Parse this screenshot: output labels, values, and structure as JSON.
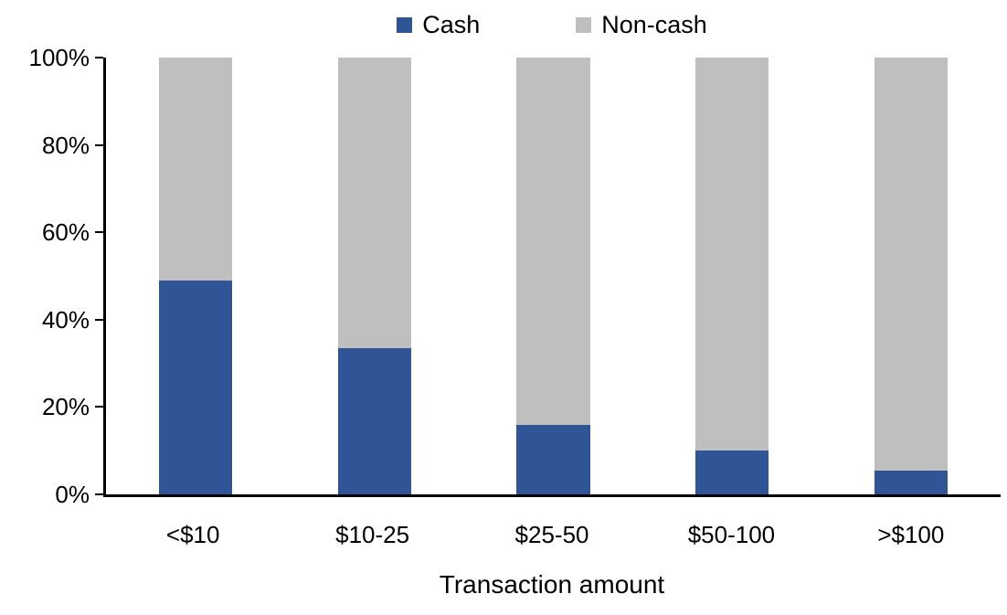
{
  "chart_data": {
    "type": "bar",
    "subtype": "stacked-100",
    "categories": [
      "<$10",
      "$10-25",
      "$25-50",
      "$50-100",
      ">$100"
    ],
    "series": [
      {
        "name": "Cash",
        "color": "#2F5597",
        "values": [
          49,
          33.5,
          16,
          10,
          5.5
        ]
      },
      {
        "name": "Non-cash",
        "color": "#BFBFBF",
        "values": [
          51,
          66.5,
          84,
          90,
          94.5
        ]
      }
    ],
    "title": "",
    "xlabel": "Transaction amount",
    "ylabel": "",
    "ylim": [
      0,
      100
    ],
    "yticks": [
      {
        "value": 0,
        "label": "0%"
      },
      {
        "value": 20,
        "label": "20%"
      },
      {
        "value": 40,
        "label": "40%"
      },
      {
        "value": 60,
        "label": "60%"
      },
      {
        "value": 80,
        "label": "80%"
      },
      {
        "value": 100,
        "label": "100%"
      }
    ],
    "grid": false,
    "legend_position": "top-center",
    "axis_color": "#000000",
    "background_color": "#FFFFFF"
  }
}
